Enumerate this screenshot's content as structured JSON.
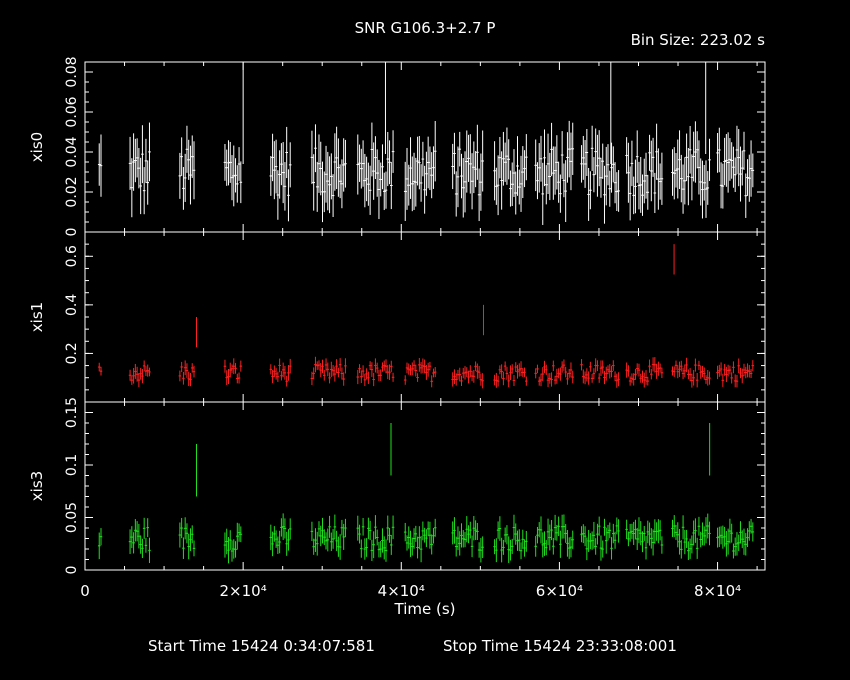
{
  "title": "SNR G106.3+2.7 P",
  "bin_size": "Bin Size: 223.02 s",
  "footer": {
    "start": "Start Time 15424  0:34:07:581",
    "stop": "Stop Time 15424 23:33:08:001"
  },
  "xlabel": "Time (s)",
  "chart_data": {
    "type": "scatter",
    "xlim": [
      0,
      86000
    ],
    "xticks": [
      {
        "v": 0,
        "label": "0"
      },
      {
        "v": 20000,
        "label": "2×10⁴"
      },
      {
        "v": 40000,
        "label": "4×10⁴"
      },
      {
        "v": 60000,
        "label": "6×10⁴"
      },
      {
        "v": 80000,
        "label": "8×10⁴"
      }
    ],
    "panels": [
      {
        "name": "xis0",
        "color": "#ffffff",
        "ylim": [
          0,
          0.085
        ],
        "yticks": [
          {
            "v": 0,
            "label": "0"
          },
          {
            "v": 0.02,
            "label": "0.02"
          },
          {
            "v": 0.04,
            "label": "0.04"
          },
          {
            "v": 0.06,
            "label": "0.06"
          },
          {
            "v": 0.08,
            "label": "0.08"
          }
        ],
        "base": 0.03,
        "noise": 0.012,
        "err": 0.012,
        "spikes": [
          {
            "x": 20000,
            "y": 0.07
          },
          {
            "x": 38000,
            "y": 0.075
          },
          {
            "x": 66500,
            "y": 0.07
          },
          {
            "x": 78500,
            "y": 0.075
          }
        ]
      },
      {
        "name": "xis1",
        "color": "#ff2020",
        "ylim": [
          0,
          0.7
        ],
        "yticks": [
          {
            "v": 0.2,
            "label": "0.2"
          },
          {
            "v": 0.4,
            "label": "0.4"
          },
          {
            "v": 0.6,
            "label": "0.6"
          }
        ],
        "base": 0.12,
        "noise": 0.035,
        "err": 0.025,
        "spikes": [
          {
            "x": 14100,
            "y": 0.3
          },
          {
            "x": 50400,
            "y": 0.35
          },
          {
            "x": 74500,
            "y": 0.6
          }
        ]
      },
      {
        "name": "xis3",
        "color": "#20e020",
        "ylim": [
          0,
          0.16
        ],
        "yticks": [
          {
            "v": 0,
            "label": "0"
          },
          {
            "v": 0.05,
            "label": "0.05"
          },
          {
            "v": 0.1,
            "label": "0.1"
          },
          {
            "v": 0.15,
            "label": "0.15"
          }
        ],
        "base": 0.03,
        "noise": 0.012,
        "err": 0.01,
        "spikes": [
          {
            "x": 14100,
            "y": 0.1
          },
          {
            "x": 38700,
            "y": 0.12
          },
          {
            "x": 79000,
            "y": 0.12
          }
        ]
      }
    ],
    "segments": [
      [
        1800,
        2200
      ],
      [
        5700,
        8300
      ],
      [
        12000,
        13900
      ],
      [
        17700,
        19800
      ],
      [
        23500,
        26000
      ],
      [
        28700,
        33100
      ],
      [
        34500,
        39000
      ],
      [
        40500,
        44500
      ],
      [
        46500,
        50500
      ],
      [
        51800,
        56000
      ],
      [
        57000,
        61800
      ],
      [
        62800,
        67600
      ],
      [
        68500,
        73000
      ],
      [
        74300,
        79000
      ],
      [
        80000,
        84500
      ]
    ]
  }
}
